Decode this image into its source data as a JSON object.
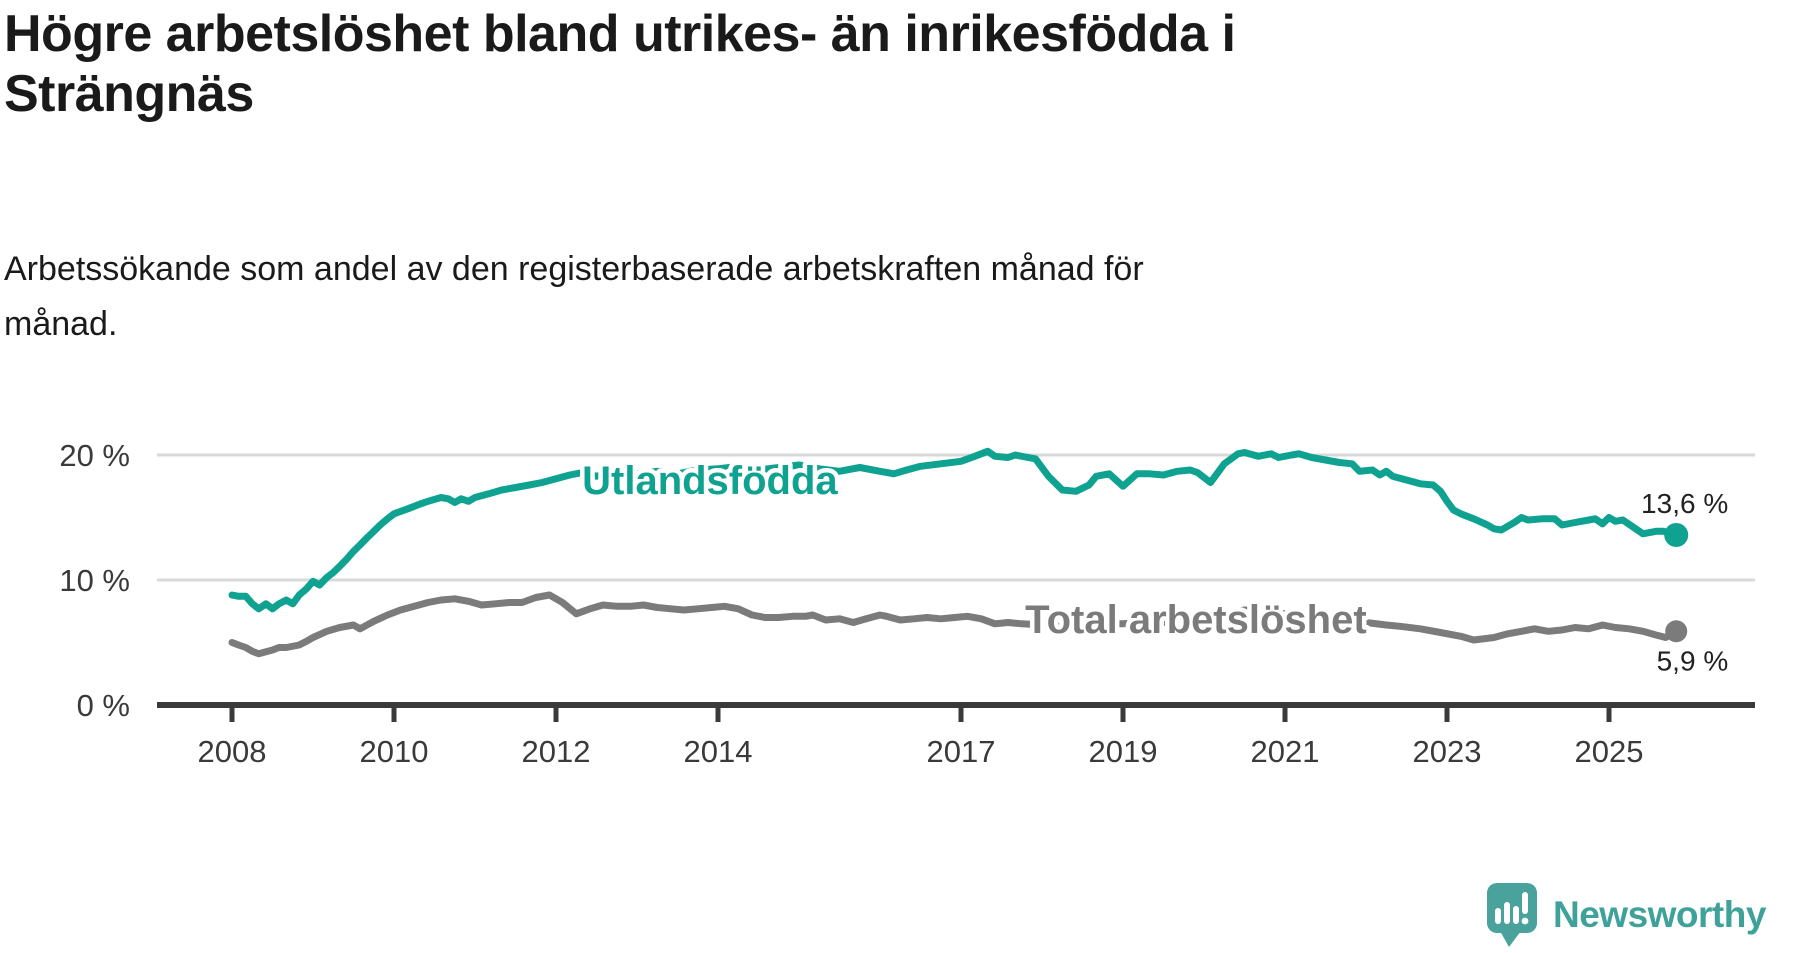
{
  "header": {
    "title_lines": [
      "Högre arbetslöshet bland utrikes- än inrikesfödda i",
      "Strängnäs"
    ],
    "subtitle_lines": [
      "Arbetssökande som andel av den registerbaserade arbetskraften månad för",
      "månad."
    ]
  },
  "footer": {
    "brand": "Newsworthy",
    "logo_icon": "speech-bubble-bar-chart",
    "brand_color": "#3fa29a",
    "icon_color": "#4aa29c"
  },
  "colors": {
    "accent_teal": "#0fa291",
    "series_gray": "#7b7b7b",
    "gridline": "#d9d9d9",
    "axis": "#3a3a3a",
    "text": "#1a1a1a",
    "value_label": "#222222"
  },
  "chart_data": {
    "type": "line",
    "title": "Högre arbetslöshet bland utrikes- än inrikesfödda i Strängnäs",
    "subtitle": "Arbetssökande som andel av den registerbaserade arbetskraften månad för månad.",
    "xlabel": "",
    "ylabel": "%",
    "ylim": [
      0,
      22
    ],
    "xlim": [
      2007.1,
      2026.8
    ],
    "grid": "horizontal",
    "legend_position": "inline-labels",
    "grid_color": "#d9d9d9",
    "axis_color": "#3a3a3a",
    "tick_label_color": "#3a3a3a",
    "y_ticks": [
      {
        "value": 20,
        "label": "20 %"
      },
      {
        "value": 10,
        "label": "10 %"
      },
      {
        "value": 0,
        "label": "0 %"
      }
    ],
    "x_ticks": [
      {
        "value": 2008,
        "label": "2008"
      },
      {
        "value": 2010,
        "label": "2010"
      },
      {
        "value": 2012,
        "label": "2012"
      },
      {
        "value": 2014,
        "label": "2014"
      },
      {
        "value": 2017,
        "label": "2017"
      },
      {
        "value": 2019,
        "label": "2019"
      },
      {
        "value": 2021,
        "label": "2021"
      },
      {
        "value": 2023,
        "label": "2023"
      },
      {
        "value": 2025,
        "label": "2025"
      }
    ],
    "series": [
      {
        "name": "Utlandsfödda",
        "color": "#0fa291",
        "end_label": "13,6 %",
        "end_value": 13.6,
        "label_at": {
          "year": 2013.9,
          "value": 18.0
        },
        "points": [
          [
            2008.0,
            8.8
          ],
          [
            2008.08,
            8.7
          ],
          [
            2008.17,
            8.7
          ],
          [
            2008.25,
            8.1
          ],
          [
            2008.33,
            7.7
          ],
          [
            2008.42,
            8.1
          ],
          [
            2008.5,
            7.7
          ],
          [
            2008.58,
            8.1
          ],
          [
            2008.67,
            8.4
          ],
          [
            2008.75,
            8.1
          ],
          [
            2008.83,
            8.8
          ],
          [
            2008.92,
            9.3
          ],
          [
            2009.0,
            9.9
          ],
          [
            2009.08,
            9.6
          ],
          [
            2009.17,
            10.2
          ],
          [
            2009.25,
            10.6
          ],
          [
            2009.33,
            11.1
          ],
          [
            2009.42,
            11.7
          ],
          [
            2009.5,
            12.3
          ],
          [
            2009.58,
            12.8
          ],
          [
            2009.67,
            13.4
          ],
          [
            2009.75,
            13.9
          ],
          [
            2009.83,
            14.4
          ],
          [
            2009.92,
            14.9
          ],
          [
            2010.0,
            15.3
          ],
          [
            2010.17,
            15.7
          ],
          [
            2010.33,
            16.1
          ],
          [
            2010.42,
            16.3
          ],
          [
            2010.58,
            16.6
          ],
          [
            2010.67,
            16.5
          ],
          [
            2010.75,
            16.2
          ],
          [
            2010.83,
            16.5
          ],
          [
            2010.92,
            16.3
          ],
          [
            2011.0,
            16.6
          ],
          [
            2011.17,
            16.9
          ],
          [
            2011.33,
            17.2
          ],
          [
            2011.5,
            17.4
          ],
          [
            2011.67,
            17.6
          ],
          [
            2011.83,
            17.8
          ],
          [
            2012.0,
            18.1
          ],
          [
            2012.17,
            18.4
          ],
          [
            2012.33,
            18.6
          ],
          [
            2012.5,
            18.3
          ],
          [
            2012.67,
            18.6
          ],
          [
            2012.83,
            18.4
          ],
          [
            2013.0,
            18.5
          ],
          [
            2013.25,
            18.7
          ],
          [
            2013.5,
            18.5
          ],
          [
            2013.75,
            18.8
          ],
          [
            2014.0,
            18.9
          ],
          [
            2014.25,
            19.1
          ],
          [
            2014.5,
            18.8
          ],
          [
            2014.75,
            19.0
          ],
          [
            2015.0,
            19.2
          ],
          [
            2015.25,
            18.9
          ],
          [
            2015.5,
            18.7
          ],
          [
            2015.75,
            19.0
          ],
          [
            2016.0,
            18.7
          ],
          [
            2016.17,
            18.5
          ],
          [
            2016.33,
            18.8
          ],
          [
            2016.5,
            19.1
          ],
          [
            2016.75,
            19.3
          ],
          [
            2017.0,
            19.5
          ],
          [
            2017.17,
            19.9
          ],
          [
            2017.33,
            20.3
          ],
          [
            2017.42,
            19.9
          ],
          [
            2017.58,
            19.8
          ],
          [
            2017.67,
            20.0
          ],
          [
            2017.83,
            19.8
          ],
          [
            2017.92,
            19.7
          ],
          [
            2018.08,
            18.3
          ],
          [
            2018.25,
            17.2
          ],
          [
            2018.42,
            17.1
          ],
          [
            2018.58,
            17.6
          ],
          [
            2018.67,
            18.3
          ],
          [
            2018.83,
            18.5
          ],
          [
            2019.0,
            17.5
          ],
          [
            2019.17,
            18.5
          ],
          [
            2019.33,
            18.5
          ],
          [
            2019.5,
            18.4
          ],
          [
            2019.67,
            18.7
          ],
          [
            2019.83,
            18.8
          ],
          [
            2019.92,
            18.6
          ],
          [
            2020.08,
            17.8
          ],
          [
            2020.25,
            19.3
          ],
          [
            2020.42,
            20.1
          ],
          [
            2020.5,
            20.2
          ],
          [
            2020.67,
            19.9
          ],
          [
            2020.83,
            20.1
          ],
          [
            2020.92,
            19.8
          ],
          [
            2021.08,
            20.0
          ],
          [
            2021.17,
            20.1
          ],
          [
            2021.33,
            19.8
          ],
          [
            2021.5,
            19.6
          ],
          [
            2021.67,
            19.4
          ],
          [
            2021.83,
            19.3
          ],
          [
            2021.92,
            18.7
          ],
          [
            2022.08,
            18.8
          ],
          [
            2022.17,
            18.4
          ],
          [
            2022.25,
            18.7
          ],
          [
            2022.33,
            18.3
          ],
          [
            2022.5,
            18.0
          ],
          [
            2022.67,
            17.7
          ],
          [
            2022.83,
            17.6
          ],
          [
            2022.92,
            17.1
          ],
          [
            2023.0,
            16.3
          ],
          [
            2023.08,
            15.6
          ],
          [
            2023.17,
            15.3
          ],
          [
            2023.33,
            14.9
          ],
          [
            2023.5,
            14.4
          ],
          [
            2023.58,
            14.1
          ],
          [
            2023.67,
            14.0
          ],
          [
            2023.83,
            14.6
          ],
          [
            2023.92,
            15.0
          ],
          [
            2024.0,
            14.8
          ],
          [
            2024.17,
            14.9
          ],
          [
            2024.33,
            14.9
          ],
          [
            2024.42,
            14.4
          ],
          [
            2024.58,
            14.6
          ],
          [
            2024.75,
            14.8
          ],
          [
            2024.83,
            14.9
          ],
          [
            2024.92,
            14.5
          ],
          [
            2025.0,
            15.0
          ],
          [
            2025.08,
            14.7
          ],
          [
            2025.17,
            14.8
          ],
          [
            2025.33,
            14.1
          ],
          [
            2025.42,
            13.7
          ],
          [
            2025.58,
            13.9
          ],
          [
            2025.67,
            13.9
          ],
          [
            2025.83,
            13.6
          ]
        ]
      },
      {
        "name": "Total arbetslöshet",
        "color": "#7b7b7b",
        "end_label": "5,9 %",
        "end_value": 5.9,
        "label_at": {
          "year": 2019.9,
          "value": 6.9
        },
        "points": [
          [
            2008.0,
            5.0
          ],
          [
            2008.08,
            4.8
          ],
          [
            2008.17,
            4.6
          ],
          [
            2008.25,
            4.3
          ],
          [
            2008.33,
            4.1
          ],
          [
            2008.5,
            4.4
          ],
          [
            2008.58,
            4.6
          ],
          [
            2008.67,
            4.6
          ],
          [
            2008.83,
            4.8
          ],
          [
            2008.92,
            5.1
          ],
          [
            2009.0,
            5.4
          ],
          [
            2009.17,
            5.9
          ],
          [
            2009.33,
            6.2
          ],
          [
            2009.5,
            6.4
          ],
          [
            2009.58,
            6.1
          ],
          [
            2009.75,
            6.7
          ],
          [
            2009.92,
            7.2
          ],
          [
            2010.08,
            7.6
          ],
          [
            2010.25,
            7.9
          ],
          [
            2010.42,
            8.2
          ],
          [
            2010.58,
            8.4
          ],
          [
            2010.75,
            8.5
          ],
          [
            2010.92,
            8.3
          ],
          [
            2011.08,
            8.0
          ],
          [
            2011.25,
            8.1
          ],
          [
            2011.42,
            8.2
          ],
          [
            2011.58,
            8.2
          ],
          [
            2011.75,
            8.6
          ],
          [
            2011.92,
            8.8
          ],
          [
            2012.08,
            8.2
          ],
          [
            2012.25,
            7.3
          ],
          [
            2012.42,
            7.7
          ],
          [
            2012.58,
            8.0
          ],
          [
            2012.75,
            7.9
          ],
          [
            2012.92,
            7.9
          ],
          [
            2013.08,
            8.0
          ],
          [
            2013.25,
            7.8
          ],
          [
            2013.42,
            7.7
          ],
          [
            2013.58,
            7.6
          ],
          [
            2013.75,
            7.7
          ],
          [
            2013.92,
            7.8
          ],
          [
            2014.08,
            7.9
          ],
          [
            2014.25,
            7.7
          ],
          [
            2014.42,
            7.2
          ],
          [
            2014.58,
            7.0
          ],
          [
            2014.75,
            7.0
          ],
          [
            2014.92,
            7.1
          ],
          [
            2015.08,
            7.1
          ],
          [
            2015.17,
            7.2
          ],
          [
            2015.33,
            6.8
          ],
          [
            2015.5,
            6.9
          ],
          [
            2015.67,
            6.6
          ],
          [
            2015.83,
            6.9
          ],
          [
            2016.0,
            7.2
          ],
          [
            2016.08,
            7.1
          ],
          [
            2016.25,
            6.8
          ],
          [
            2016.42,
            6.9
          ],
          [
            2016.58,
            7.0
          ],
          [
            2016.75,
            6.9
          ],
          [
            2016.92,
            7.0
          ],
          [
            2017.08,
            7.1
          ],
          [
            2017.25,
            6.9
          ],
          [
            2017.42,
            6.5
          ],
          [
            2017.58,
            6.6
          ],
          [
            2017.75,
            6.5
          ],
          [
            2018.0,
            6.4
          ],
          [
            2018.25,
            6.3
          ],
          [
            2018.5,
            6.3
          ],
          [
            2018.75,
            6.5
          ],
          [
            2019.0,
            6.5
          ],
          [
            2019.25,
            6.6
          ],
          [
            2019.5,
            6.6
          ],
          [
            2019.75,
            6.7
          ],
          [
            2020.0,
            6.6
          ],
          [
            2020.25,
            7.3
          ],
          [
            2020.5,
            7.6
          ],
          [
            2020.75,
            7.5
          ],
          [
            2021.0,
            7.3
          ],
          [
            2021.25,
            7.1
          ],
          [
            2021.5,
            7.0
          ],
          [
            2021.75,
            6.8
          ],
          [
            2022.0,
            6.6
          ],
          [
            2022.25,
            6.4
          ],
          [
            2022.42,
            6.3
          ],
          [
            2022.67,
            6.1
          ],
          [
            2022.92,
            5.8
          ],
          [
            2023.17,
            5.5
          ],
          [
            2023.33,
            5.2
          ],
          [
            2023.58,
            5.4
          ],
          [
            2023.75,
            5.7
          ],
          [
            2023.92,
            5.9
          ],
          [
            2024.08,
            6.1
          ],
          [
            2024.25,
            5.9
          ],
          [
            2024.42,
            6.0
          ],
          [
            2024.58,
            6.2
          ],
          [
            2024.75,
            6.1
          ],
          [
            2024.92,
            6.4
          ],
          [
            2025.08,
            6.2
          ],
          [
            2025.25,
            6.1
          ],
          [
            2025.42,
            5.9
          ],
          [
            2025.58,
            5.6
          ],
          [
            2025.7,
            5.4
          ],
          [
            2025.83,
            5.9
          ]
        ]
      }
    ]
  }
}
